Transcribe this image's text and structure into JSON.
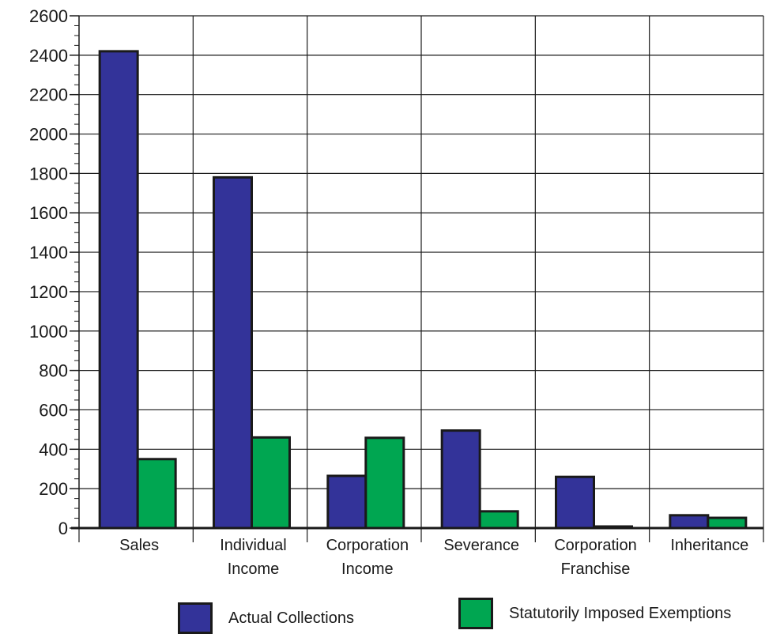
{
  "chart_data": {
    "type": "bar",
    "title": "",
    "xlabel": "",
    "ylabel": "",
    "ylim": [
      0,
      2600
    ],
    "yticks": [
      0,
      200,
      400,
      600,
      800,
      1000,
      1200,
      1400,
      1600,
      1800,
      2000,
      2200,
      2400,
      2600
    ],
    "grid": true,
    "legend_position": "bottom",
    "categories": [
      [
        "Sales"
      ],
      [
        "Individual",
        "Income"
      ],
      [
        "Corporation",
        "Income"
      ],
      [
        "Severance"
      ],
      [
        "Corporation",
        "Franchise"
      ],
      [
        "Inheritance"
      ]
    ],
    "series": [
      {
        "name": "Actual Collections",
        "color": "#333399",
        "values": [
          2420,
          1780,
          265,
          495,
          260,
          65
        ]
      },
      {
        "name": "Statutorily Imposed Exemptions",
        "color": "#00a651",
        "values": [
          350,
          460,
          458,
          85,
          8,
          52
        ]
      }
    ]
  }
}
